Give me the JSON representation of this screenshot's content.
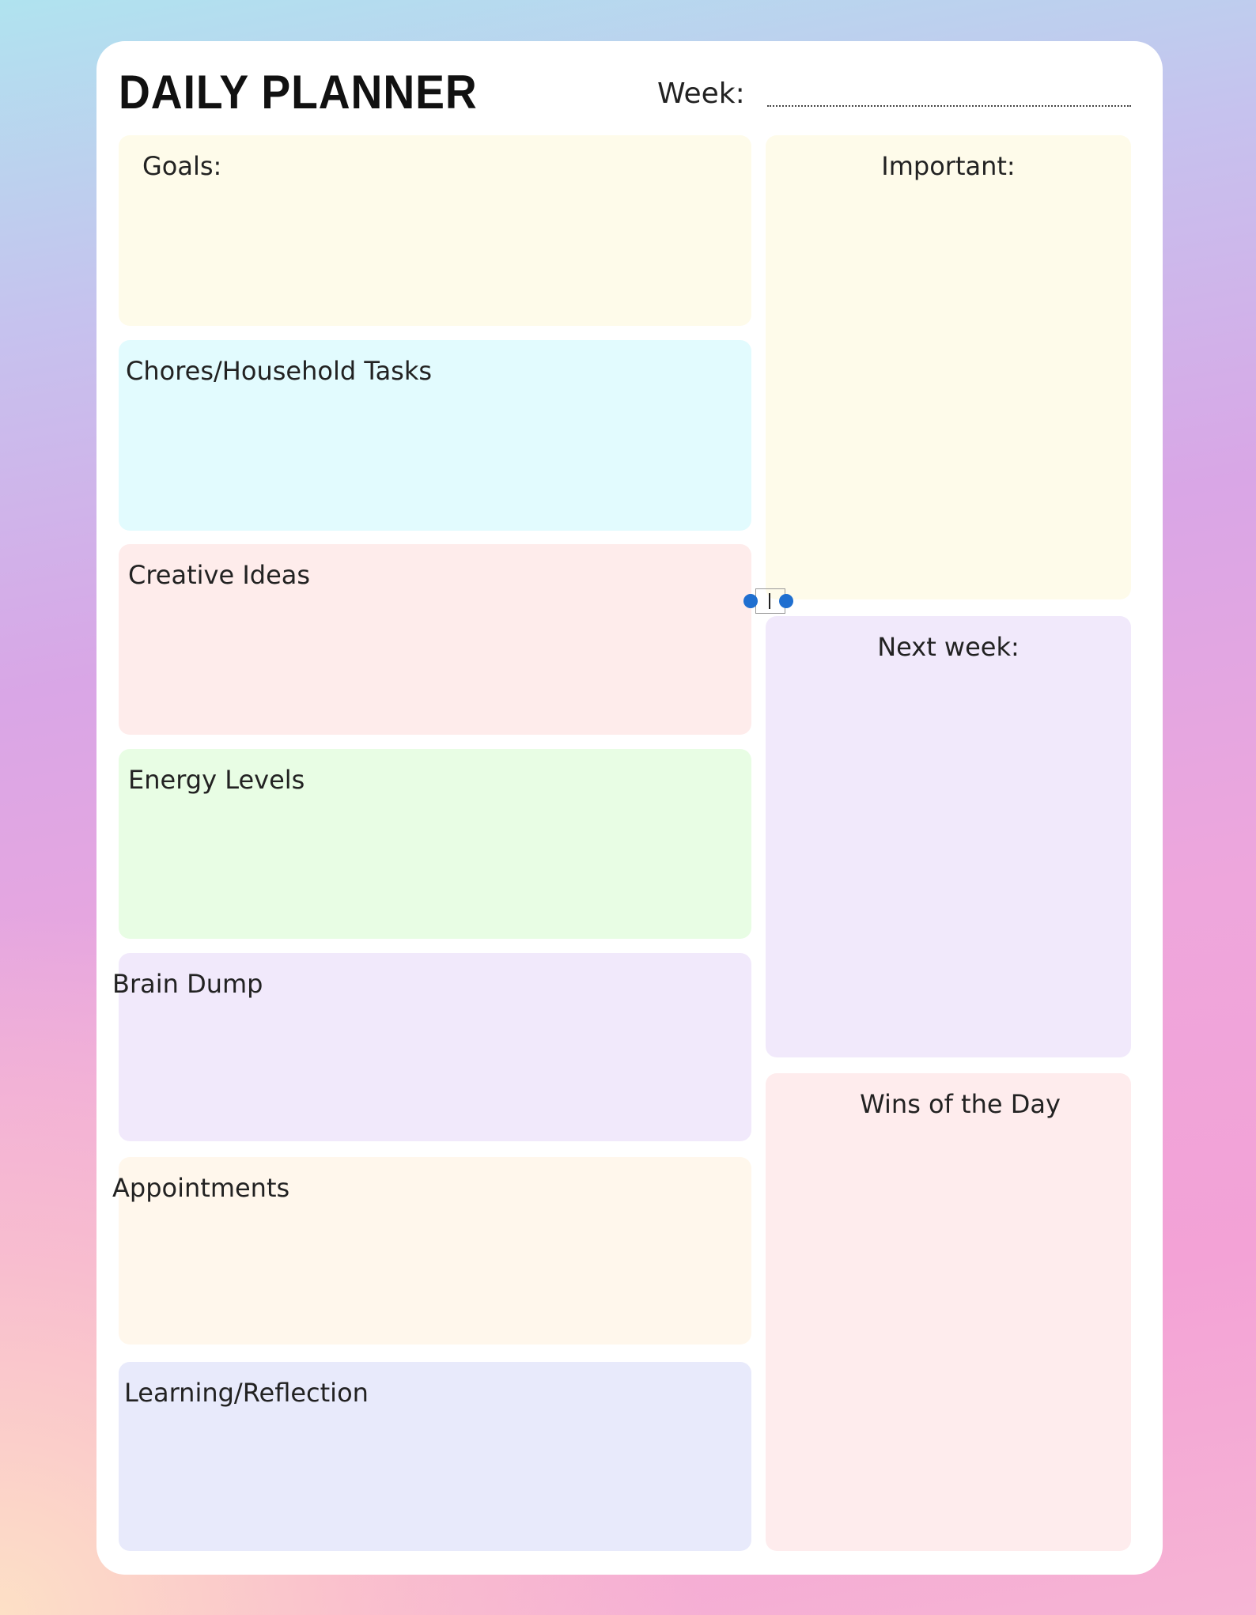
{
  "title": "DAILY PLANNER",
  "week_label": "Week:",
  "sections": [
    {
      "label": "Goals:",
      "color": "#fefbea"
    },
    {
      "label": "Chores/Household Tasks",
      "color": "#e2fbfe"
    },
    {
      "label": "Creative Ideas",
      "color": "#feeceb"
    },
    {
      "label": "Energy Levels",
      "color": "#e8fde4"
    },
    {
      "label": "Brain Dump",
      "color": "#f1e9fb"
    },
    {
      "label": "Appointments",
      "color": "#fff7ec"
    },
    {
      "label": "Learning/Reflection",
      "color": "#e8eafb"
    },
    {
      "label": "Important:",
      "color": "#fefbea"
    },
    {
      "label": "Next week:",
      "color": "#f1e9fb"
    },
    {
      "label": "Wins of the Day",
      "color": "#feeced"
    }
  ]
}
